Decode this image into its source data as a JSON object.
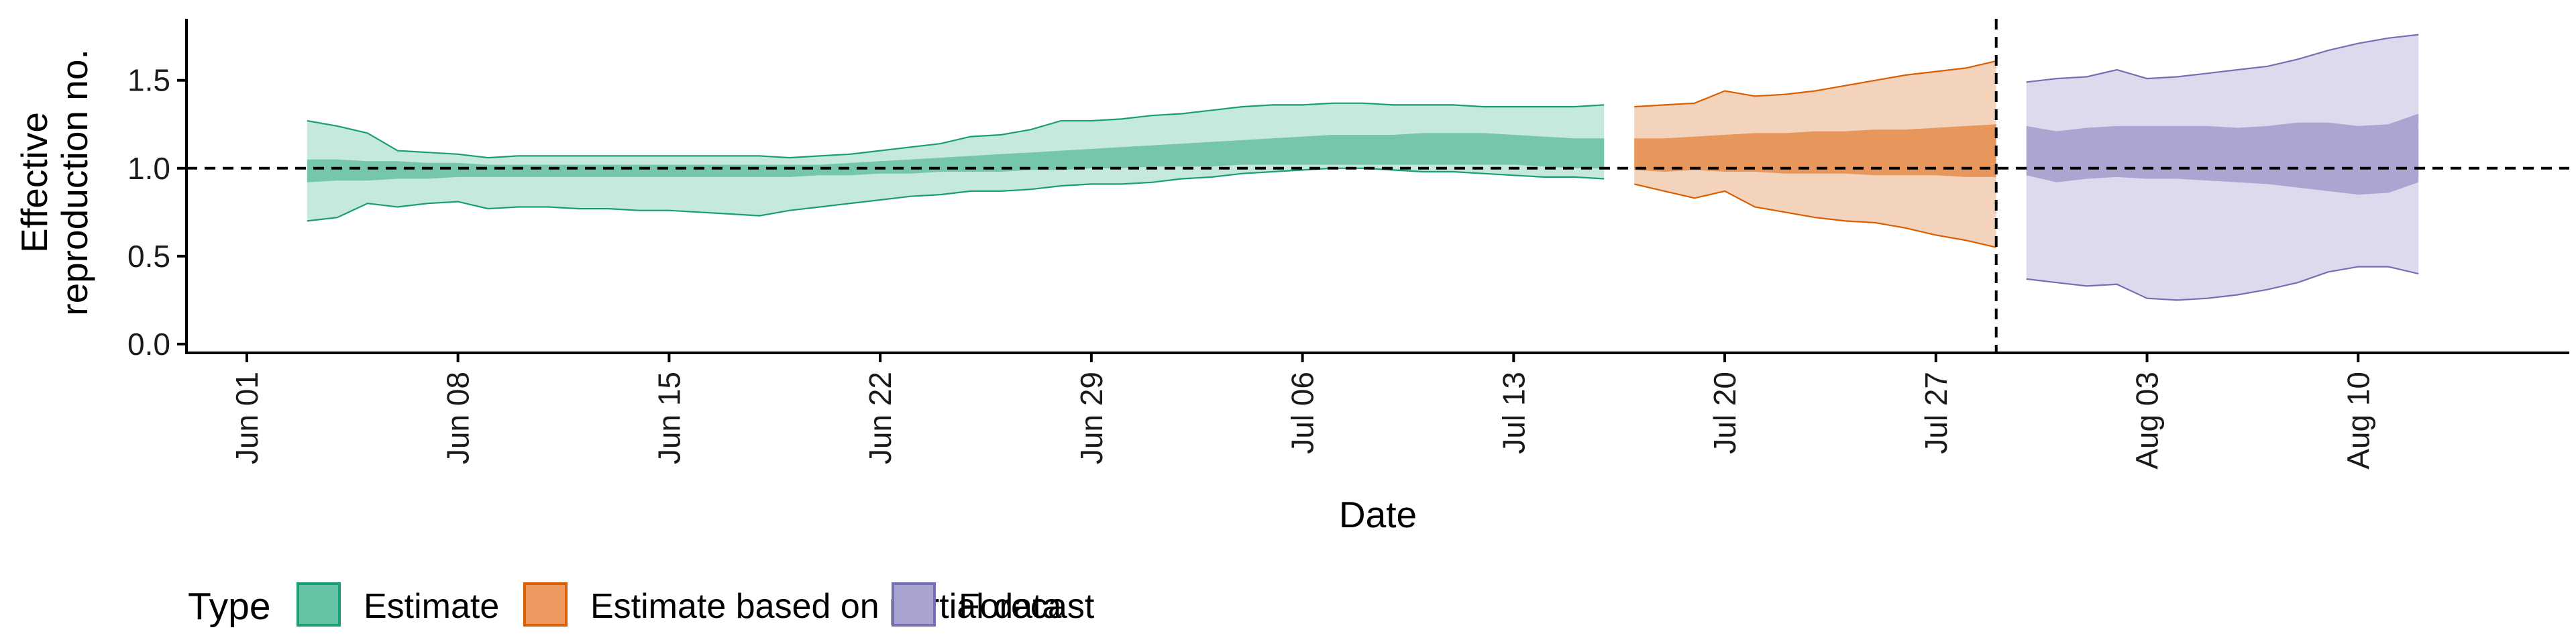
{
  "chart_data": {
    "type": "area",
    "xlabel": "Date",
    "ylabel": [
      "Effective",
      "reproduction no."
    ],
    "ylim": [
      -0.05,
      1.85
    ],
    "xlim": [
      "2021-05-30",
      "2021-08-17"
    ],
    "reference_y": 1.0,
    "reference_x": "2021-07-29",
    "x_ticks": [
      {
        "date": "2021-06-01",
        "label": "Jun 01"
      },
      {
        "date": "2021-06-08",
        "label": "Jun 08"
      },
      {
        "date": "2021-06-15",
        "label": "Jun 15"
      },
      {
        "date": "2021-06-22",
        "label": "Jun 22"
      },
      {
        "date": "2021-06-29",
        "label": "Jun 29"
      },
      {
        "date": "2021-07-06",
        "label": "Jul 06"
      },
      {
        "date": "2021-07-13",
        "label": "Jul 13"
      },
      {
        "date": "2021-07-20",
        "label": "Jul 20"
      },
      {
        "date": "2021-07-27",
        "label": "Jul 27"
      },
      {
        "date": "2021-08-03",
        "label": "Aug 03"
      },
      {
        "date": "2021-08-10",
        "label": "Aug 10"
      }
    ],
    "y_ticks": [
      {
        "value": 0.0,
        "label": "0.0"
      },
      {
        "value": 0.5,
        "label": "0.5"
      },
      {
        "value": 1.0,
        "label": "1.0"
      },
      {
        "value": 1.5,
        "label": "1.5"
      }
    ],
    "legend": {
      "title": "Type",
      "position": "bottom",
      "entries": [
        {
          "label": "Estimate",
          "fill": "#66c2a5",
          "stroke": "#1b9e77"
        },
        {
          "label": "Estimate based on partial data",
          "fill": "#ec9a5f",
          "stroke": "#d95f02"
        },
        {
          "label": "Forecast",
          "fill": "#a8a3d0",
          "stroke": "#7570b3"
        }
      ]
    },
    "series": [
      {
        "name": "Estimate",
        "color": "#1b9e77",
        "outer_fill": "#c6e9dd",
        "inner_fill": "#75c6aa",
        "x": [
          "2021-06-03",
          "2021-06-04",
          "2021-06-05",
          "2021-06-06",
          "2021-06-07",
          "2021-06-08",
          "2021-06-09",
          "2021-06-10",
          "2021-06-11",
          "2021-06-12",
          "2021-06-13",
          "2021-06-14",
          "2021-06-15",
          "2021-06-16",
          "2021-06-17",
          "2021-06-18",
          "2021-06-19",
          "2021-06-20",
          "2021-06-21",
          "2021-06-22",
          "2021-06-23",
          "2021-06-24",
          "2021-06-25",
          "2021-06-26",
          "2021-06-27",
          "2021-06-28",
          "2021-06-29",
          "2021-06-30",
          "2021-07-01",
          "2021-07-02",
          "2021-07-03",
          "2021-07-04",
          "2021-07-05",
          "2021-07-06",
          "2021-07-07",
          "2021-07-08",
          "2021-07-09",
          "2021-07-10",
          "2021-07-11",
          "2021-07-12",
          "2021-07-13",
          "2021-07-14",
          "2021-07-15",
          "2021-07-16"
        ],
        "upper90": [
          1.27,
          1.24,
          1.2,
          1.1,
          1.09,
          1.08,
          1.06,
          1.07,
          1.07,
          1.07,
          1.07,
          1.07,
          1.07,
          1.07,
          1.07,
          1.07,
          1.06,
          1.07,
          1.08,
          1.1,
          1.12,
          1.14,
          1.18,
          1.19,
          1.22,
          1.27,
          1.27,
          1.28,
          1.3,
          1.31,
          1.33,
          1.35,
          1.36,
          1.36,
          1.37,
          1.37,
          1.36,
          1.36,
          1.36,
          1.35,
          1.35,
          1.35,
          1.35,
          1.36
        ],
        "upper50": [
          1.05,
          1.05,
          1.04,
          1.04,
          1.03,
          1.03,
          1.02,
          1.02,
          1.02,
          1.02,
          1.02,
          1.02,
          1.02,
          1.02,
          1.02,
          1.02,
          1.02,
          1.02,
          1.03,
          1.04,
          1.05,
          1.06,
          1.07,
          1.08,
          1.09,
          1.1,
          1.11,
          1.12,
          1.13,
          1.14,
          1.15,
          1.16,
          1.17,
          1.18,
          1.19,
          1.19,
          1.19,
          1.2,
          1.2,
          1.2,
          1.19,
          1.18,
          1.17,
          1.17
        ],
        "lower50": [
          0.92,
          0.93,
          0.93,
          0.94,
          0.94,
          0.95,
          0.95,
          0.95,
          0.95,
          0.95,
          0.95,
          0.95,
          0.95,
          0.95,
          0.95,
          0.95,
          0.95,
          0.96,
          0.96,
          0.97,
          0.97,
          0.98,
          0.98,
          0.98,
          0.99,
          0.99,
          1.0,
          1.0,
          1.01,
          1.01,
          1.01,
          1.02,
          1.02,
          1.02,
          1.02,
          1.02,
          1.02,
          1.02,
          1.02,
          1.02,
          1.02,
          1.01,
          1.0,
          1.0
        ],
        "lower90": [
          0.7,
          0.72,
          0.8,
          0.78,
          0.8,
          0.81,
          0.77,
          0.78,
          0.78,
          0.77,
          0.77,
          0.76,
          0.76,
          0.75,
          0.74,
          0.73,
          0.76,
          0.78,
          0.8,
          0.82,
          0.84,
          0.85,
          0.87,
          0.87,
          0.88,
          0.9,
          0.91,
          0.91,
          0.92,
          0.94,
          0.95,
          0.97,
          0.98,
          0.99,
          1.0,
          1.0,
          0.99,
          0.98,
          0.98,
          0.97,
          0.96,
          0.95,
          0.95,
          0.94
        ]
      },
      {
        "name": "Estimate based on partial data",
        "color": "#d95f02",
        "outer_fill": "#f4d3bc",
        "inner_fill": "#e8975c",
        "x": [
          "2021-07-17",
          "2021-07-18",
          "2021-07-19",
          "2021-07-20",
          "2021-07-21",
          "2021-07-22",
          "2021-07-23",
          "2021-07-24",
          "2021-07-25",
          "2021-07-26",
          "2021-07-27",
          "2021-07-28",
          "2021-07-29"
        ],
        "upper90": [
          1.35,
          1.36,
          1.37,
          1.44,
          1.41,
          1.42,
          1.44,
          1.47,
          1.5,
          1.53,
          1.55,
          1.57,
          1.61
        ],
        "upper50": [
          1.17,
          1.17,
          1.18,
          1.19,
          1.2,
          1.2,
          1.21,
          1.21,
          1.22,
          1.22,
          1.23,
          1.24,
          1.25
        ],
        "lower50": [
          0.99,
          0.98,
          0.99,
          0.98,
          0.98,
          0.97,
          0.97,
          0.97,
          0.96,
          0.96,
          0.96,
          0.95,
          0.95
        ],
        "lower90": [
          0.91,
          0.87,
          0.83,
          0.87,
          0.78,
          0.75,
          0.72,
          0.7,
          0.69,
          0.66,
          0.62,
          0.59,
          0.55
        ]
      },
      {
        "name": "Forecast",
        "color": "#7570b3",
        "outer_fill": "#dcdaec",
        "inner_fill": "#aaa6d1",
        "x": [
          "2021-07-30",
          "2021-07-31",
          "2021-08-01",
          "2021-08-02",
          "2021-08-03",
          "2021-08-04",
          "2021-08-05",
          "2021-08-06",
          "2021-08-07",
          "2021-08-08",
          "2021-08-09",
          "2021-08-10",
          "2021-08-11",
          "2021-08-12"
        ],
        "upper90": [
          1.49,
          1.51,
          1.52,
          1.56,
          1.51,
          1.52,
          1.54,
          1.56,
          1.58,
          1.62,
          1.67,
          1.71,
          1.74,
          1.76
        ],
        "upper50": [
          1.24,
          1.21,
          1.23,
          1.24,
          1.24,
          1.24,
          1.24,
          1.23,
          1.24,
          1.26,
          1.26,
          1.24,
          1.25,
          1.31
        ],
        "lower50": [
          0.96,
          0.92,
          0.94,
          0.95,
          0.94,
          0.94,
          0.93,
          0.92,
          0.91,
          0.89,
          0.87,
          0.85,
          0.86,
          0.92
        ],
        "lower90": [
          0.37,
          0.35,
          0.33,
          0.34,
          0.26,
          0.25,
          0.26,
          0.28,
          0.31,
          0.35,
          0.41,
          0.44,
          0.44,
          0.4
        ]
      }
    ]
  }
}
